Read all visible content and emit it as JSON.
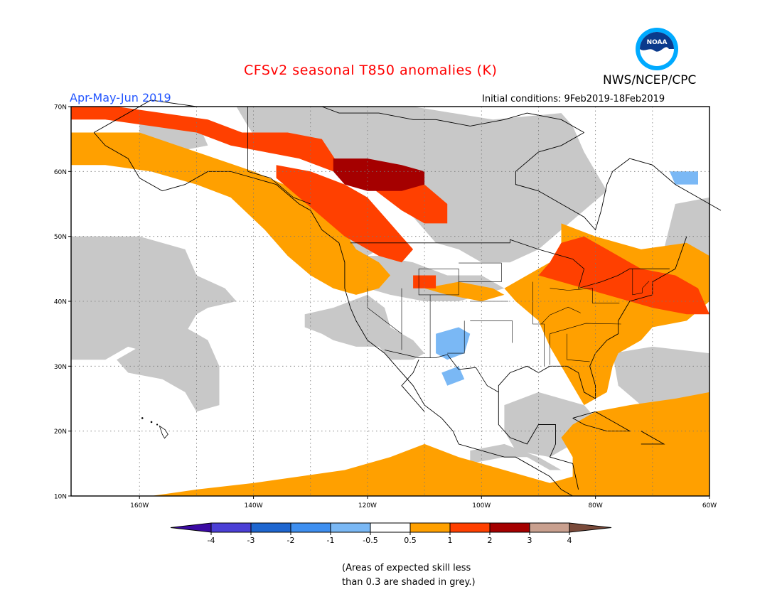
{
  "header": {
    "title": "CFSv2 seasonal T850 anomalies (K)",
    "agency": "NWS/NCEP/CPC",
    "period": "Apr-May-Jun 2019",
    "initial_conditions": "Initial conditions: 9Feb2019-18Feb2019",
    "logo_text": "NOAA"
  },
  "map": {
    "projection": "equirectangular",
    "lon_range": [
      -172,
      -60
    ],
    "lat_range": [
      10,
      70
    ],
    "lat_ticks": [
      "10N",
      "20N",
      "30N",
      "40N",
      "50N",
      "60N",
      "70N"
    ],
    "lon_ticks": [
      "160W",
      "140W",
      "120W",
      "100W",
      "80W",
      "60W"
    ],
    "grid": "dotted",
    "skill_mask_color": "#c8c8c8"
  },
  "colorbar": {
    "labels": [
      "-4",
      "-3",
      "-2",
      "-1",
      "-0.5",
      "0.5",
      "1",
      "2",
      "3",
      "4"
    ],
    "colors": [
      "#3b0aa3",
      "#4b3fd6",
      "#1e66d0",
      "#3e8ff0",
      "#7ab8f5",
      "#ffffff",
      "#ffa000",
      "#ff4000",
      "#a50000",
      "#c9a08f",
      "#7a4a3a"
    ]
  },
  "note": {
    "line1": "(Areas of expected skill less",
    "line2": "than 0.3 are shaded in grey.)"
  }
}
